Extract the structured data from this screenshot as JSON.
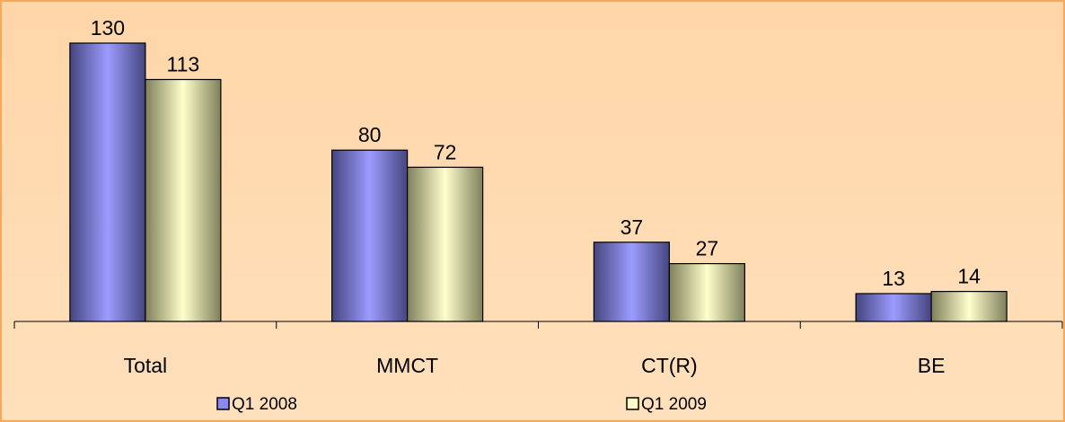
{
  "chart_data": {
    "type": "bar",
    "categories": [
      "Total",
      "MMCT",
      "CT(R)",
      "BE"
    ],
    "series": [
      {
        "name": "Q1 2008",
        "values": [
          130,
          80,
          37,
          13
        ],
        "color": "#8b88f0"
      },
      {
        "name": "Q1 2009",
        "values": [
          113,
          72,
          27,
          14
        ],
        "color": "#ffffc8"
      }
    ],
    "ylim": [
      0,
      130
    ],
    "grid": false,
    "legend_position": "bottom",
    "data_labels": true
  }
}
